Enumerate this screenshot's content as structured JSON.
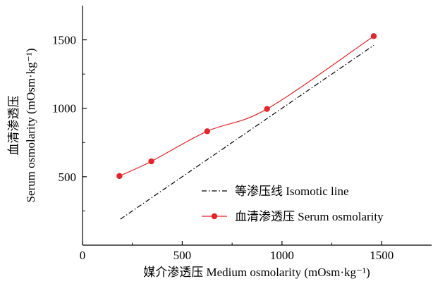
{
  "chart_data": {
    "type": "line",
    "xlabel": "媒介渗透压 Medium osmolarity (mOsm·kg⁻¹)",
    "ylabel_cn": "血清渗透压",
    "ylabel_en": "Serum osmolarity (mOsm·kg⁻¹)",
    "xlim": [
      0,
      1750
    ],
    "ylim": [
      0,
      1750
    ],
    "xticks": [
      0,
      500,
      1000,
      1500
    ],
    "yticks": [
      500,
      1000,
      1500
    ],
    "grid": false,
    "legend_position": "bottom-right",
    "series": [
      {
        "name": "等渗压线 Isomotic line",
        "style": "dash-dot",
        "color": "#000000",
        "markers": false,
        "x": [
          190,
          1460
        ],
        "y": [
          190,
          1460
        ]
      },
      {
        "name": "血清渗透压 Serum osmolarity",
        "style": "solid",
        "color": "#e8232a",
        "markers": true,
        "x": [
          185,
          345,
          625,
          925,
          1460
        ],
        "y": [
          505,
          612,
          832,
          995,
          1527
        ]
      }
    ]
  }
}
